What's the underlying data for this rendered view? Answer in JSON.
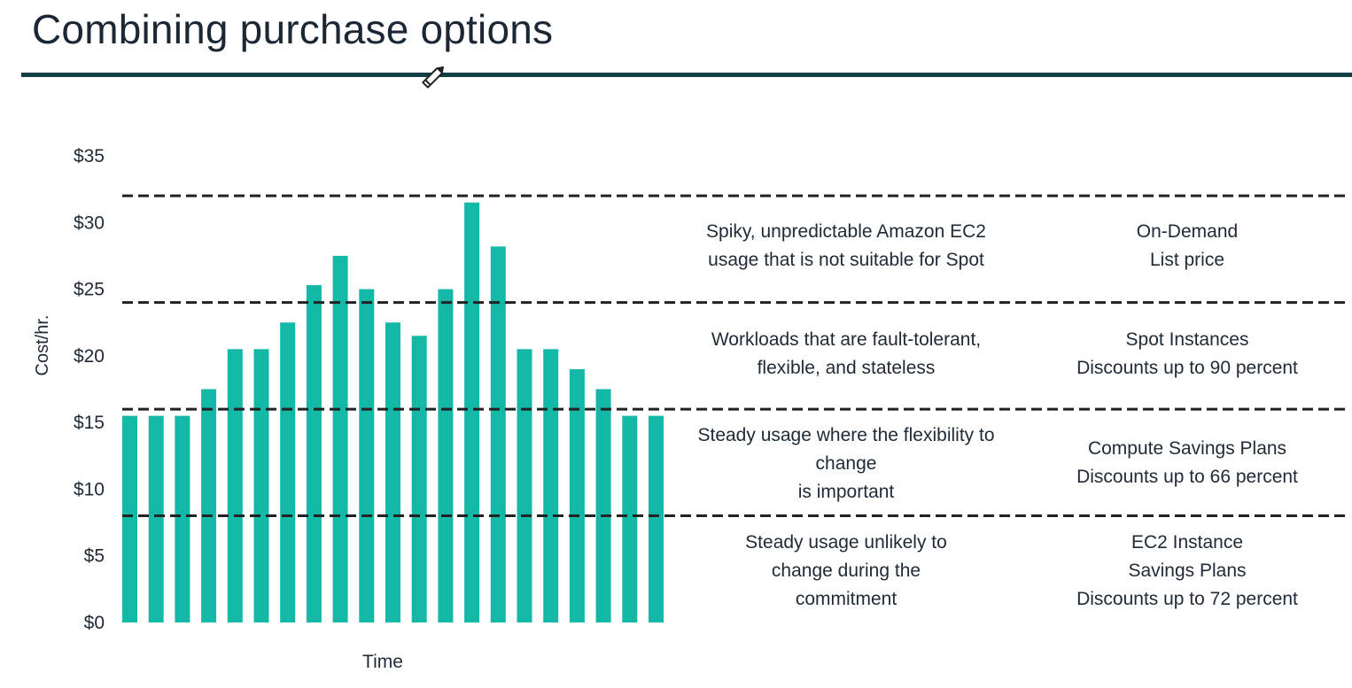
{
  "title": "Combining purchase options",
  "accent_color": "#14b8a6",
  "rule_color": "#0e3f44",
  "chart_data": {
    "type": "bar",
    "xlabel": "Time",
    "ylabel": "Cost/hr.",
    "ylim": [
      0,
      35
    ],
    "yticks": [
      "$0",
      "$5",
      "$10",
      "$15",
      "$20",
      "$25",
      "$30",
      "$35"
    ],
    "ytick_values": [
      0,
      5,
      10,
      15,
      20,
      25,
      30,
      35
    ],
    "values": [
      15.5,
      15.5,
      15.5,
      17.5,
      20.5,
      20.5,
      22.5,
      25.3,
      27.5,
      25,
      22.5,
      21.5,
      25,
      31.5,
      28.2,
      20.5,
      20.5,
      19,
      17.5,
      15.5,
      15.5
    ],
    "thresholds": [
      8,
      16,
      24,
      32
    ],
    "grid": false
  },
  "tiers": [
    {
      "description_lines": [
        "Spiky, unpredictable Amazon EC2",
        "usage that is not suitable for Spot"
      ],
      "option_lines": [
        "On-Demand",
        "List price"
      ]
    },
    {
      "description_lines": [
        "Workloads that are fault-tolerant,",
        "flexible, and stateless"
      ],
      "option_lines": [
        "Spot Instances",
        "Discounts up to 90 percent"
      ]
    },
    {
      "description_lines": [
        "Steady usage where the flexibility to",
        "change",
        "is important"
      ],
      "option_lines": [
        "Compute Savings Plans",
        "Discounts up to 66 percent"
      ]
    },
    {
      "description_lines": [
        "Steady usage unlikely to",
        "change during the",
        "commitment"
      ],
      "option_lines": [
        "EC2 Instance",
        "Savings Plans",
        "Discounts up to 72 percent"
      ]
    }
  ]
}
